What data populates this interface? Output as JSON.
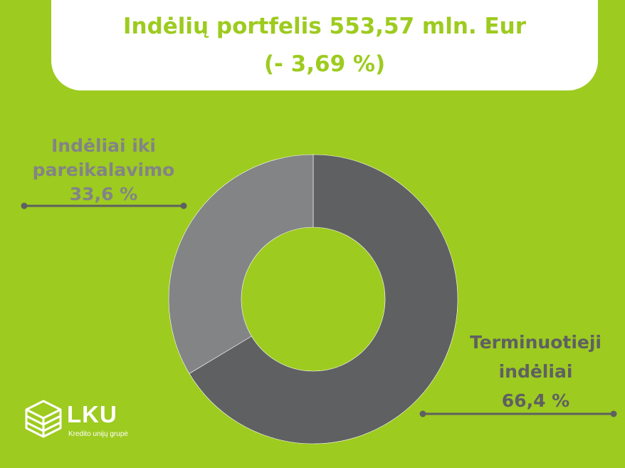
{
  "title": {
    "line1": "Indėlių portfelis 553,57 mln. Eur",
    "line2": "(- 3,69 %)"
  },
  "chart_data": {
    "type": "pie",
    "style": "donut",
    "slices": [
      {
        "label_lines": [
          "Terminuotieji",
          "indėliai"
        ],
        "value": 66.4,
        "value_text": "66,4 %",
        "color": "#5f6062"
      },
      {
        "label_lines": [
          "Indėliai iki",
          "pareikalavimo"
        ],
        "value": 33.6,
        "value_text": "33,6 %",
        "color": "#838486"
      }
    ]
  },
  "colors": {
    "background": "#9dcb1f",
    "title_text": "#9dcb1f",
    "connector": "#5f6062"
  },
  "logo": {
    "text": "LKU",
    "subtitle": "Kredito unijų grupė",
    "icon": "cube-logo-icon"
  }
}
